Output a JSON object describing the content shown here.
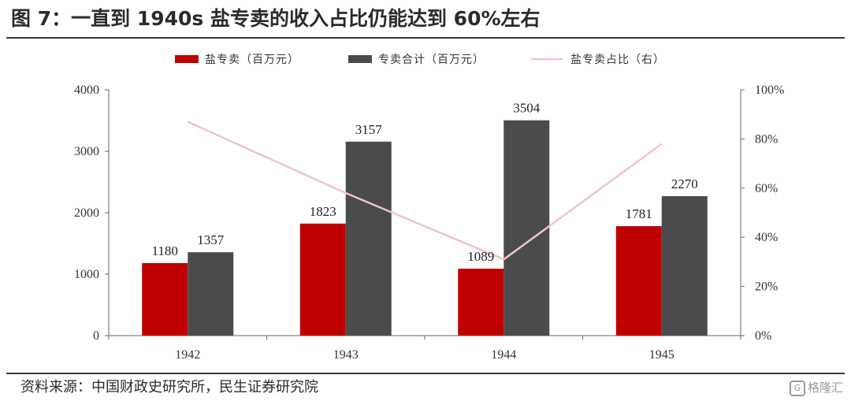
{
  "header": {
    "title": "图 7：一直到 1940s 盐专卖的收入占比仍能达到 60%左右"
  },
  "footer": {
    "source": "资料来源：中国财政史研究所，民生证券研究院",
    "watermark": "格隆汇"
  },
  "chart_data": {
    "type": "bar",
    "categories": [
      "1942",
      "1943",
      "1944",
      "1945"
    ],
    "series": [
      {
        "name": "盐专卖（百万元）",
        "kind": "bar",
        "axis": "left",
        "color": "#c00000",
        "values": [
          1180,
          1823,
          1089,
          1781
        ]
      },
      {
        "name": "专卖合计（百万元）",
        "kind": "bar",
        "axis": "left",
        "color": "#4a4b4d",
        "values": [
          1357,
          3157,
          3504,
          2270
        ]
      },
      {
        "name": "盐专卖占比（右）",
        "kind": "line",
        "axis": "right",
        "color": "#f0c4c4",
        "values": [
          87,
          58,
          31,
          78
        ]
      }
    ],
    "y_left": {
      "min": 0,
      "max": 4000,
      "ticks": [
        "0",
        "1000",
        "2000",
        "3000",
        "4000"
      ]
    },
    "y_right": {
      "min": 0,
      "max": 100,
      "ticks": [
        "0%",
        "20%",
        "40%",
        "60%",
        "80%",
        "100%"
      ]
    },
    "legend_position": "top",
    "grid": false
  }
}
